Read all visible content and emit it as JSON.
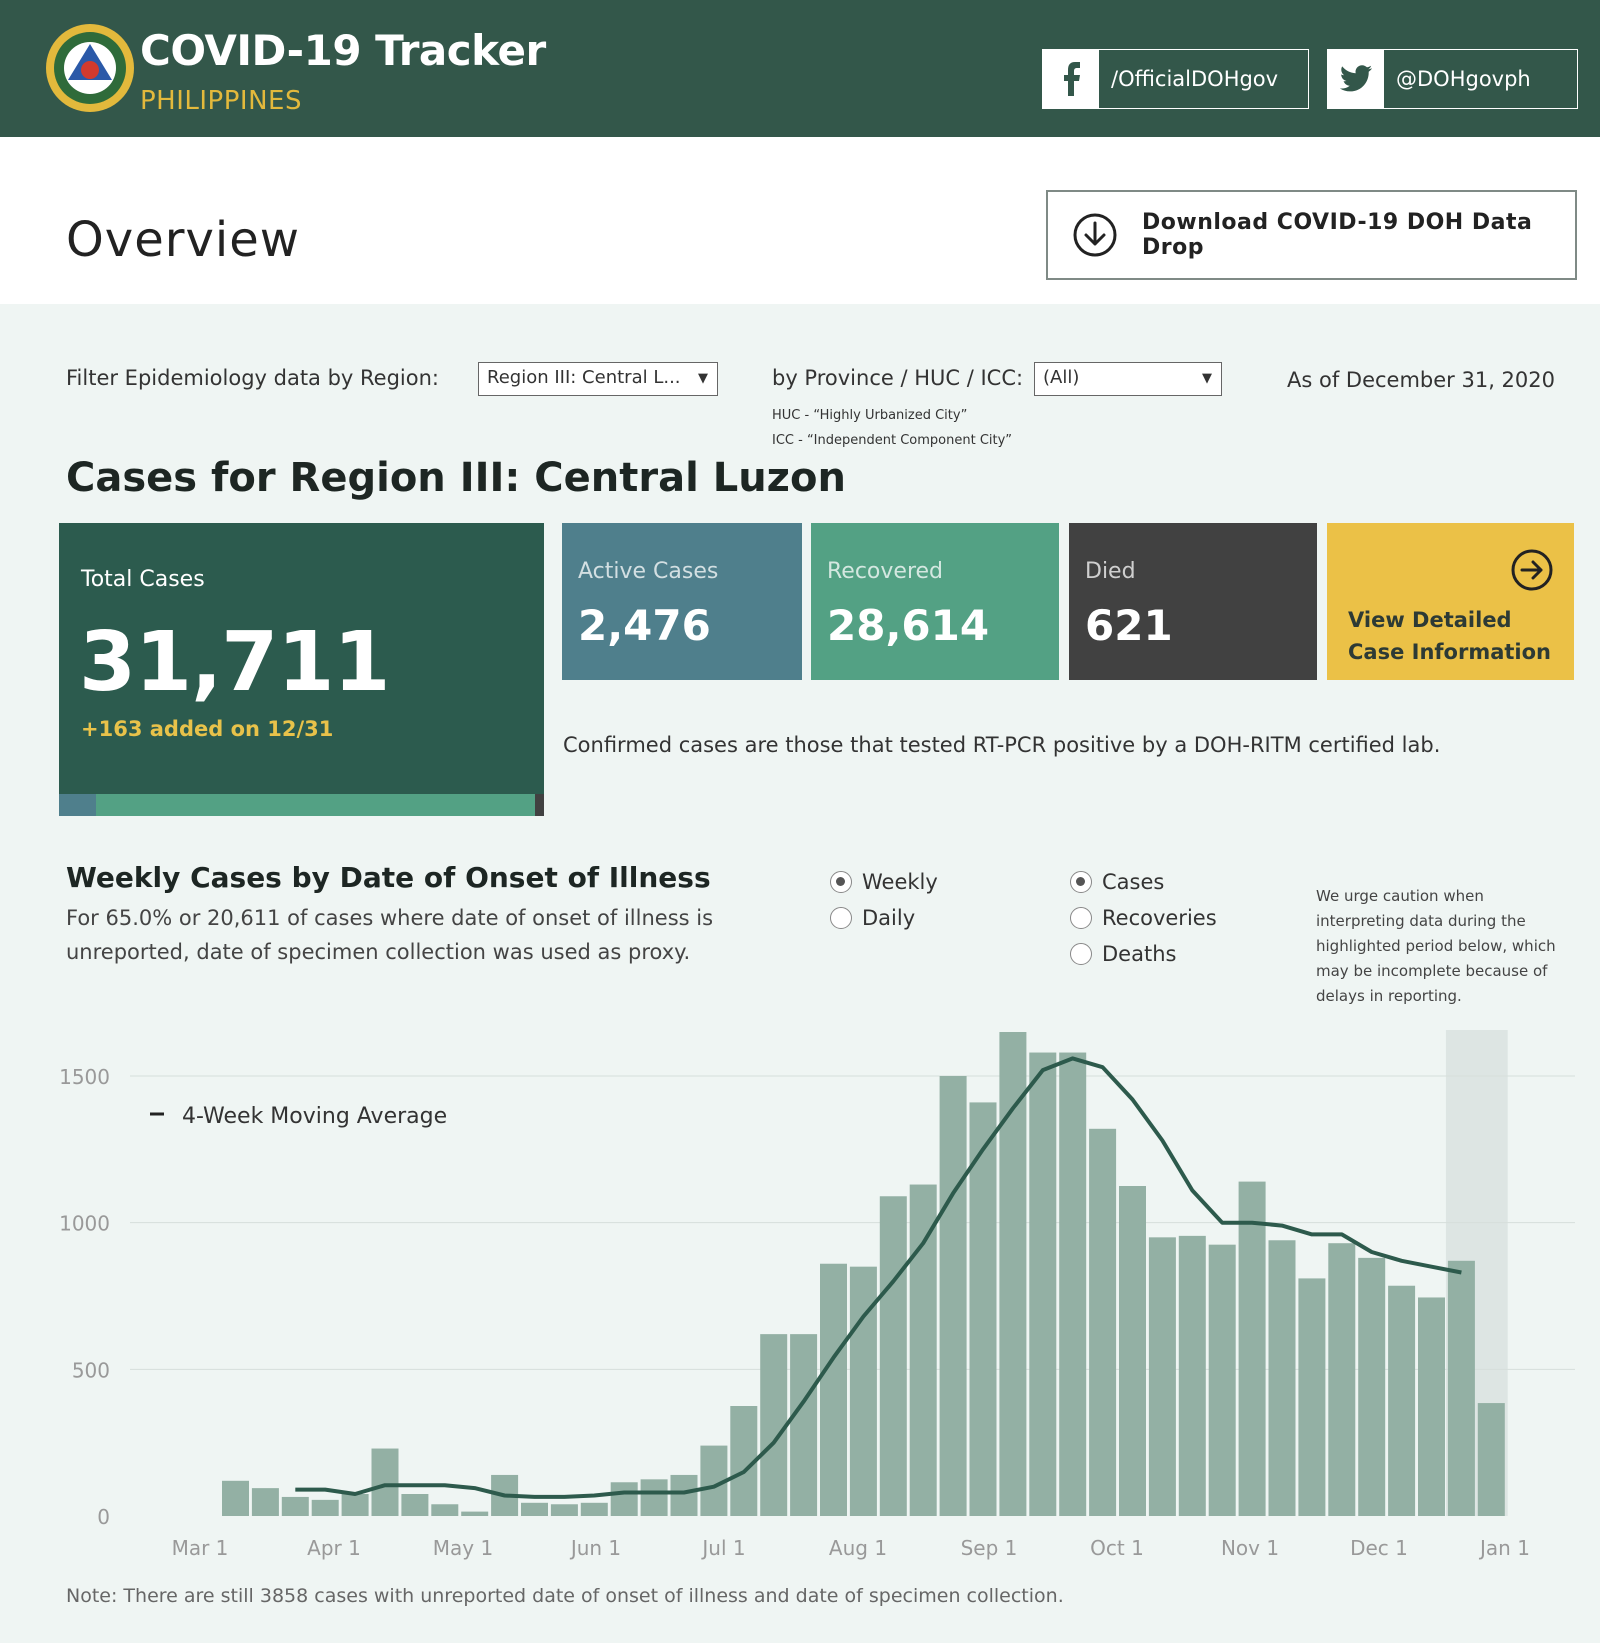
{
  "header": {
    "title": "COVID-19 Tracker",
    "subtitle": "PHILIPPINES",
    "facebook": "/OfficialDOHgov",
    "twitter": "@DOHgovph",
    "colors": {
      "bg": "#33574a",
      "accent": "#e3b93c"
    }
  },
  "overview": {
    "title": "Overview",
    "download_label": "Download COVID-19 DOH Data Drop"
  },
  "filters": {
    "region_label": "Filter Epidemiology data by Region:",
    "region_value": "Region III: Central L...",
    "province_label": "by Province / HUC / ICC:",
    "province_value": "(All)",
    "huc_note": "HUC - “Highly Urbanized City”",
    "icc_note": "ICC - “Independent Component City”",
    "as_of": "As of December 31, 2020"
  },
  "cases": {
    "title": "Cases for Region III: Central Luzon",
    "total_label": "Total Cases",
    "total_value": "31,711",
    "added": "+163 added on 12/31",
    "active_label": "Active Cases",
    "active_value": "2,476",
    "recovered_label": "Recovered",
    "recovered_value": "28,614",
    "died_label": "Died",
    "died_value": "621",
    "detail_line1": "View Detailed",
    "detail_line2": "Case Information",
    "confirmed_note": "Confirmed cases are those that tested RT-PCR positive by a DOH-RITM certified lab.",
    "colors": {
      "total": "#2c5b4e",
      "active": "#4f7f8c",
      "recovered": "#53a184",
      "died": "#414141",
      "detail": "#ebc147"
    }
  },
  "weekly": {
    "title": "Weekly Cases by Date of Onset of Illness",
    "subtitle": "For 65.0% or 20,611 of cases where date of onset of illness is unreported, date of specimen collection was used as proxy.",
    "radio_weekly": "Weekly",
    "radio_daily": "Daily",
    "radio_cases": "Cases",
    "radio_recoveries": "Recoveries",
    "radio_deaths": "Deaths",
    "selected_period": "Weekly",
    "selected_metric": "Cases",
    "caution": "We urge caution when interpreting data during the highlighted period below, which may be incomplete because of delays in reporting.",
    "note": "Note: There are still 3858 cases with unreported date of onset of illness and date of specimen collection."
  },
  "chart_data": {
    "type": "bar",
    "x_tick_labels": [
      "Mar 1",
      "Apr 1",
      "May 1",
      "Jun 1",
      "Jul 1",
      "Aug 1",
      "Sep 1",
      "Oct 1",
      "Nov 1",
      "Dec 1",
      "Jan 1"
    ],
    "y_ticks": [
      0,
      500,
      1000,
      1500
    ],
    "ylim": [
      0,
      1650
    ],
    "grid": true,
    "legend": "4-Week Moving Average",
    "bar_color": "#93b0a4",
    "line_color": "#2d5a4c",
    "highlight_color": "#dde5e3",
    "highlight_last_weeks": 2,
    "weeks": [
      "Mar 8",
      "Mar 15",
      "Mar 22",
      "Mar 29",
      "Apr 5",
      "Apr 12",
      "Apr 19",
      "Apr 26",
      "May 3",
      "May 10",
      "May 17",
      "May 24",
      "May 31",
      "Jun 7",
      "Jun 14",
      "Jun 21",
      "Jun 28",
      "Jul 5",
      "Jul 12",
      "Jul 19",
      "Jul 26",
      "Aug 2",
      "Aug 9",
      "Aug 16",
      "Aug 23",
      "Aug 30",
      "Sep 6",
      "Sep 13",
      "Sep 20",
      "Sep 27",
      "Oct 4",
      "Oct 11",
      "Oct 18",
      "Oct 25",
      "Nov 1",
      "Nov 8",
      "Nov 15",
      "Nov 22",
      "Nov 29",
      "Dec 6",
      "Dec 13",
      "Dec 20",
      "Dec 27"
    ],
    "values": [
      120,
      95,
      65,
      55,
      75,
      230,
      75,
      40,
      15,
      140,
      45,
      40,
      45,
      115,
      125,
      140,
      240,
      375,
      620,
      620,
      860,
      850,
      1090,
      1130,
      1500,
      1410,
      1650,
      1580,
      1580,
      1320,
      1125,
      950,
      955,
      925,
      1140,
      940,
      810,
      930,
      880,
      785,
      745,
      870,
      385
    ],
    "moving_average": [
      null,
      null,
      90,
      90,
      75,
      105,
      105,
      105,
      95,
      70,
      65,
      65,
      70,
      80,
      80,
      80,
      100,
      150,
      250,
      390,
      540,
      680,
      800,
      930,
      1100,
      1250,
      1390,
      1520,
      1560,
      1530,
      1420,
      1280,
      1110,
      1000,
      1000,
      990,
      960,
      960,
      900,
      870,
      850,
      830,
      null
    ]
  }
}
